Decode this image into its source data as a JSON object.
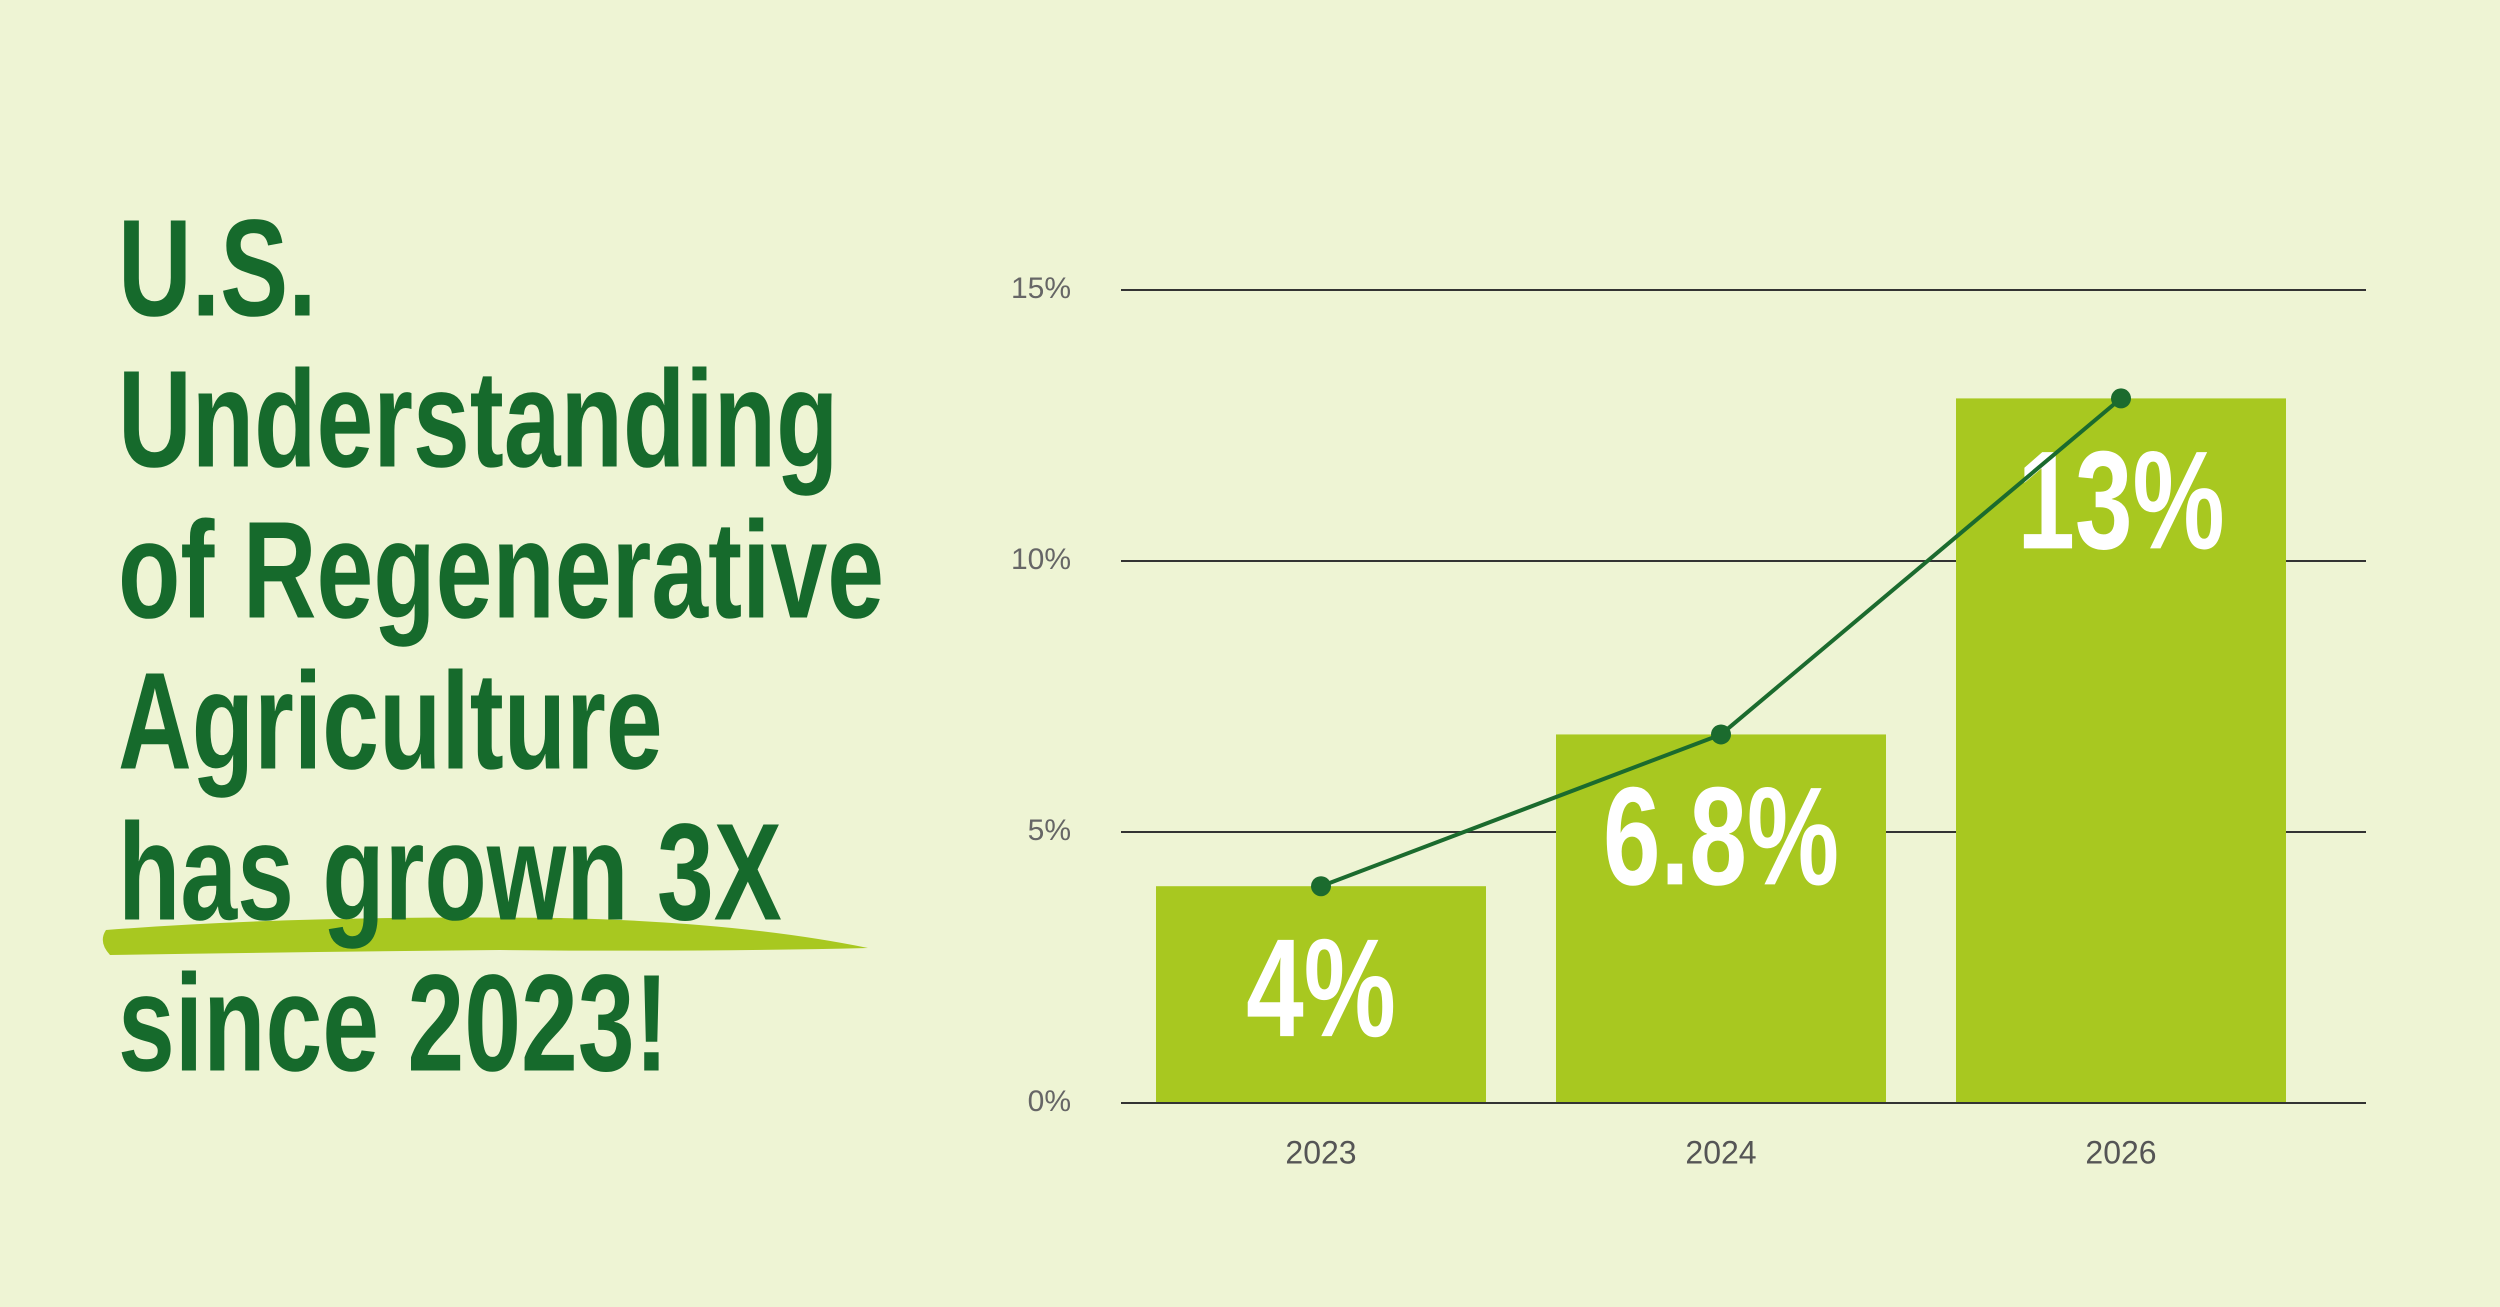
{
  "chart_data": {
    "type": "bar-line",
    "title": [
      "U.S.",
      "Understanding",
      "of Regenerative",
      "Agriculture",
      "has grown 3X",
      "since 2023!"
    ],
    "categories": [
      "2023",
      "2024",
      "2026"
    ],
    "values": [
      4,
      6.8,
      13
    ],
    "value_labels": [
      "4%",
      "6.8%",
      "13%"
    ],
    "color": "#a8c820",
    "line_color": "#1b6b2e",
    "ylim": [
      0,
      15
    ],
    "yticks": [
      {
        "value": 0,
        "label": "0%"
      },
      {
        "value": 5,
        "label": "5%"
      },
      {
        "value": 10,
        "label": "10%"
      },
      {
        "value": 15,
        "label": "15%"
      }
    ],
    "grid": true
  }
}
